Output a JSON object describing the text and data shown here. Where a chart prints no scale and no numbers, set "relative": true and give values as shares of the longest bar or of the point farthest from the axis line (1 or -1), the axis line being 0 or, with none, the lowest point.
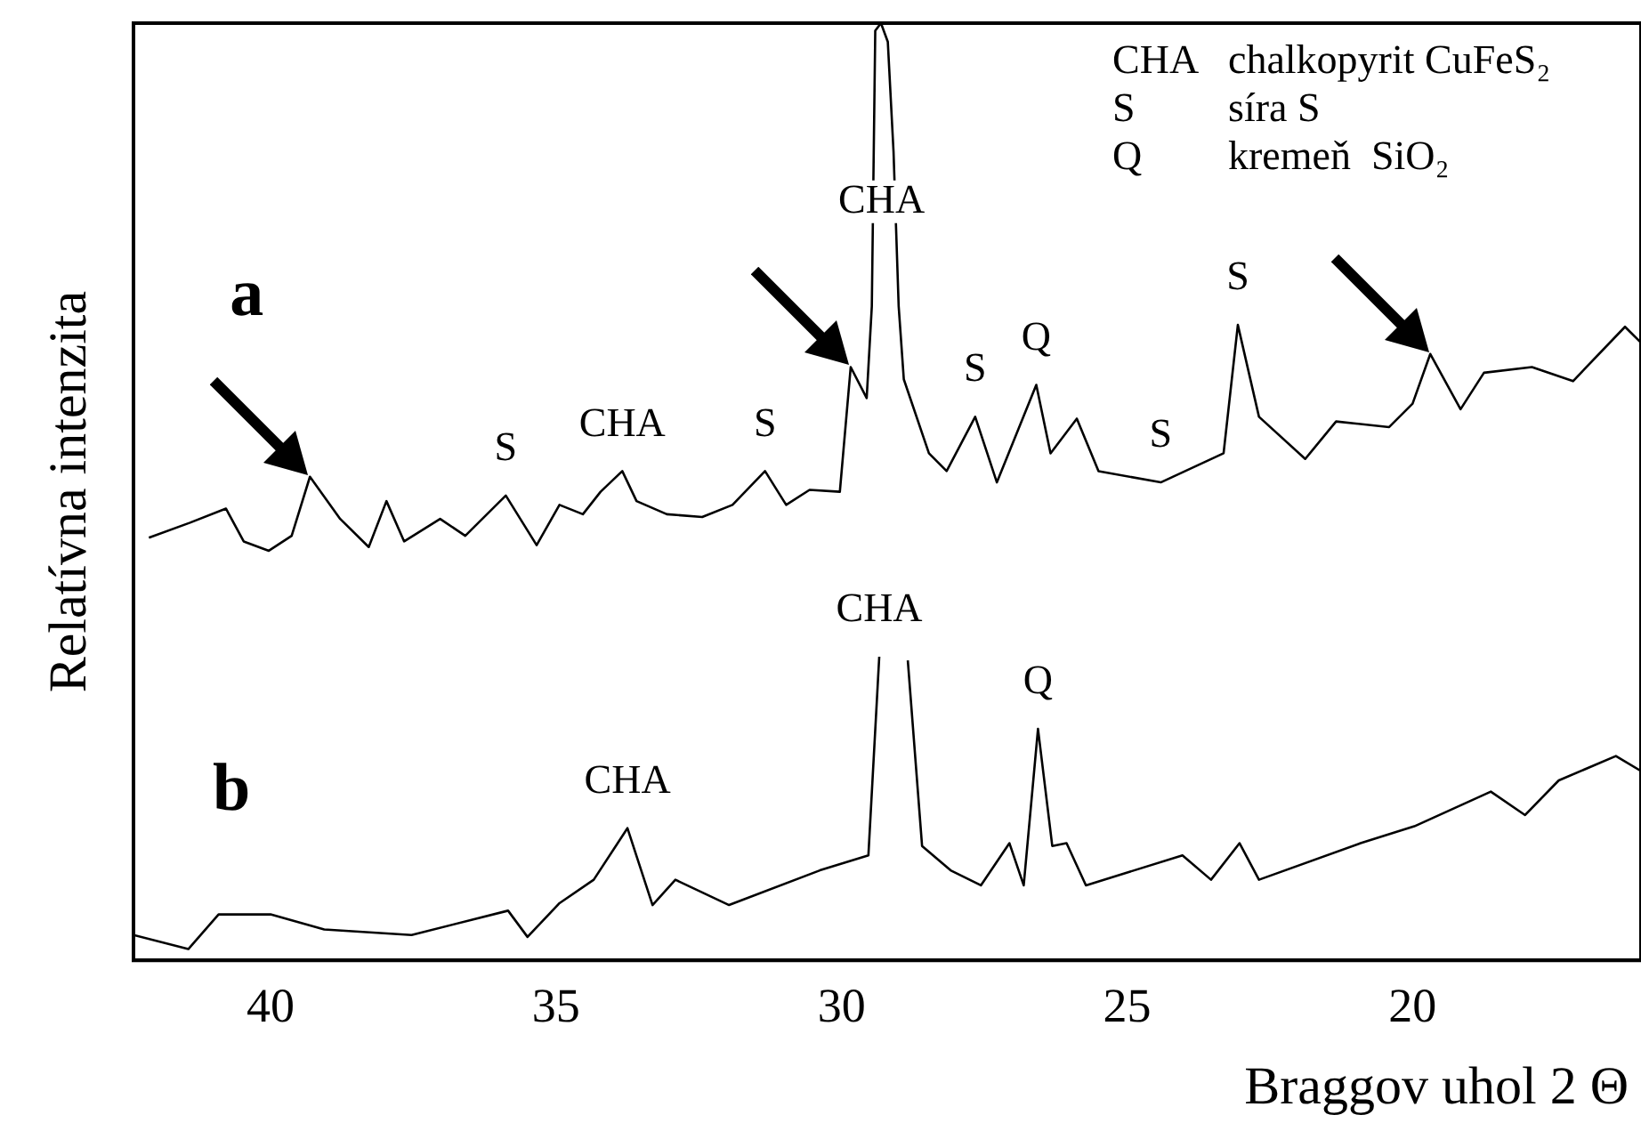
{
  "chart_data": {
    "type": "line",
    "relative": true,
    "xlabel": "Braggov uhol 2 Θ",
    "ylabel": "Relatívna intenzita",
    "xlim": [
      42.4,
      16
    ],
    "xticks": [
      40,
      35,
      30,
      25,
      20
    ],
    "line_style": "solid",
    "series": [
      {
        "name": "a",
        "color": "#000000",
        "x": [
          42.13,
          41.41,
          40.78,
          40.47,
          40.03,
          39.63,
          39.31,
          38.78,
          38.28,
          37.97,
          37.66,
          37.03,
          36.59,
          35.88,
          35.34,
          34.94,
          34.53,
          34.22,
          33.84,
          33.59,
          33.06,
          32.44,
          31.91,
          31.34,
          30.97,
          30.56,
          30.03,
          29.84,
          29.56,
          29.47,
          29.41,
          29.31,
          29.19,
          29.09,
          29.0,
          28.91,
          28.47,
          28.16,
          27.66,
          27.28,
          26.59,
          26.34,
          25.88,
          25.5,
          24.41,
          23.31,
          23.06,
          22.69,
          21.88,
          21.34,
          20.41,
          20.0,
          19.69,
          19.16,
          18.75,
          17.91,
          17.19,
          16.28,
          16.0
        ],
        "values": [
          0.451,
          0.467,
          0.482,
          0.447,
          0.437,
          0.453,
          0.516,
          0.471,
          0.441,
          0.49,
          0.447,
          0.471,
          0.453,
          0.496,
          0.443,
          0.486,
          0.476,
          0.5,
          0.522,
          0.49,
          0.476,
          0.473,
          0.486,
          0.522,
          0.486,
          0.502,
          0.5,
          0.633,
          0.6,
          0.698,
          0.992,
          1,
          0.98,
          0.863,
          0.698,
          0.62,
          0.541,
          0.522,
          0.58,
          0.51,
          0.614,
          0.541,
          0.578,
          0.522,
          0.51,
          0.541,
          0.678,
          0.58,
          0.535,
          0.575,
          0.569,
          0.594,
          0.647,
          0.588,
          0.627,
          0.633,
          0.618,
          0.676,
          0.659
        ]
      },
      {
        "name": "b",
        "color": "#000000",
        "x": [
          42.4,
          41.44,
          40.91,
          40.0,
          39.06,
          37.53,
          35.84,
          35.5,
          34.94,
          34.34,
          33.75,
          33.31,
          32.91,
          31.97,
          30.38,
          29.53,
          29.34,
          29.22,
          29.0,
          28.84,
          28.59,
          28.09,
          27.56,
          27.06,
          26.81,
          26.56,
          26.31,
          26.06,
          25.72,
          24.03,
          23.53,
          23.03,
          22.69,
          20.91,
          19.97,
          18.63,
          18.03,
          17.44,
          16.44,
          16.0
        ],
        "values": [
          0.027,
          0.012,
          0.049,
          0.049,
          0.033,
          0.027,
          0.053,
          0.025,
          0.061,
          0.086,
          0.141,
          0.059,
          0.086,
          0.059,
          0.096,
          0.112,
          0.324,
          null,
          null,
          0.32,
          0.122,
          0.096,
          0.08,
          0.125,
          0.08,
          0.247,
          0.122,
          0.125,
          0.08,
          0.112,
          0.086,
          0.125,
          0.086,
          0.125,
          0.143,
          0.18,
          0.155,
          0.192,
          0.218,
          0.202
        ]
      }
    ],
    "annotations": [
      "CHA  chalkopyrit CuFeS₂",
      "S  síra S",
      "Q  kremeň  SiO₂",
      {
        "text": "S",
        "x": 35.88,
        "y": 0.496
      },
      {
        "text": "CHA",
        "x": 33.84,
        "y": 0.522
      },
      {
        "text": "S",
        "x": 31.34,
        "y": 0.522
      },
      {
        "text": "CHA",
        "x": 29.3,
        "y": 0.76
      },
      {
        "text": "S",
        "x": 27.66,
        "y": 0.58
      },
      {
        "text": "Q",
        "x": 26.59,
        "y": 0.614
      },
      {
        "text": "S",
        "x": 24.41,
        "y": 0.51
      },
      {
        "text": "S",
        "x": 23.06,
        "y": 0.678
      },
      {
        "text": "CHA",
        "x": 33.75,
        "y": 0.141
      },
      {
        "text": "CHA",
        "x": 29.34,
        "y": 0.324
      },
      {
        "text": "Q",
        "x": 26.56,
        "y": 0.247
      }
    ]
  }
}
